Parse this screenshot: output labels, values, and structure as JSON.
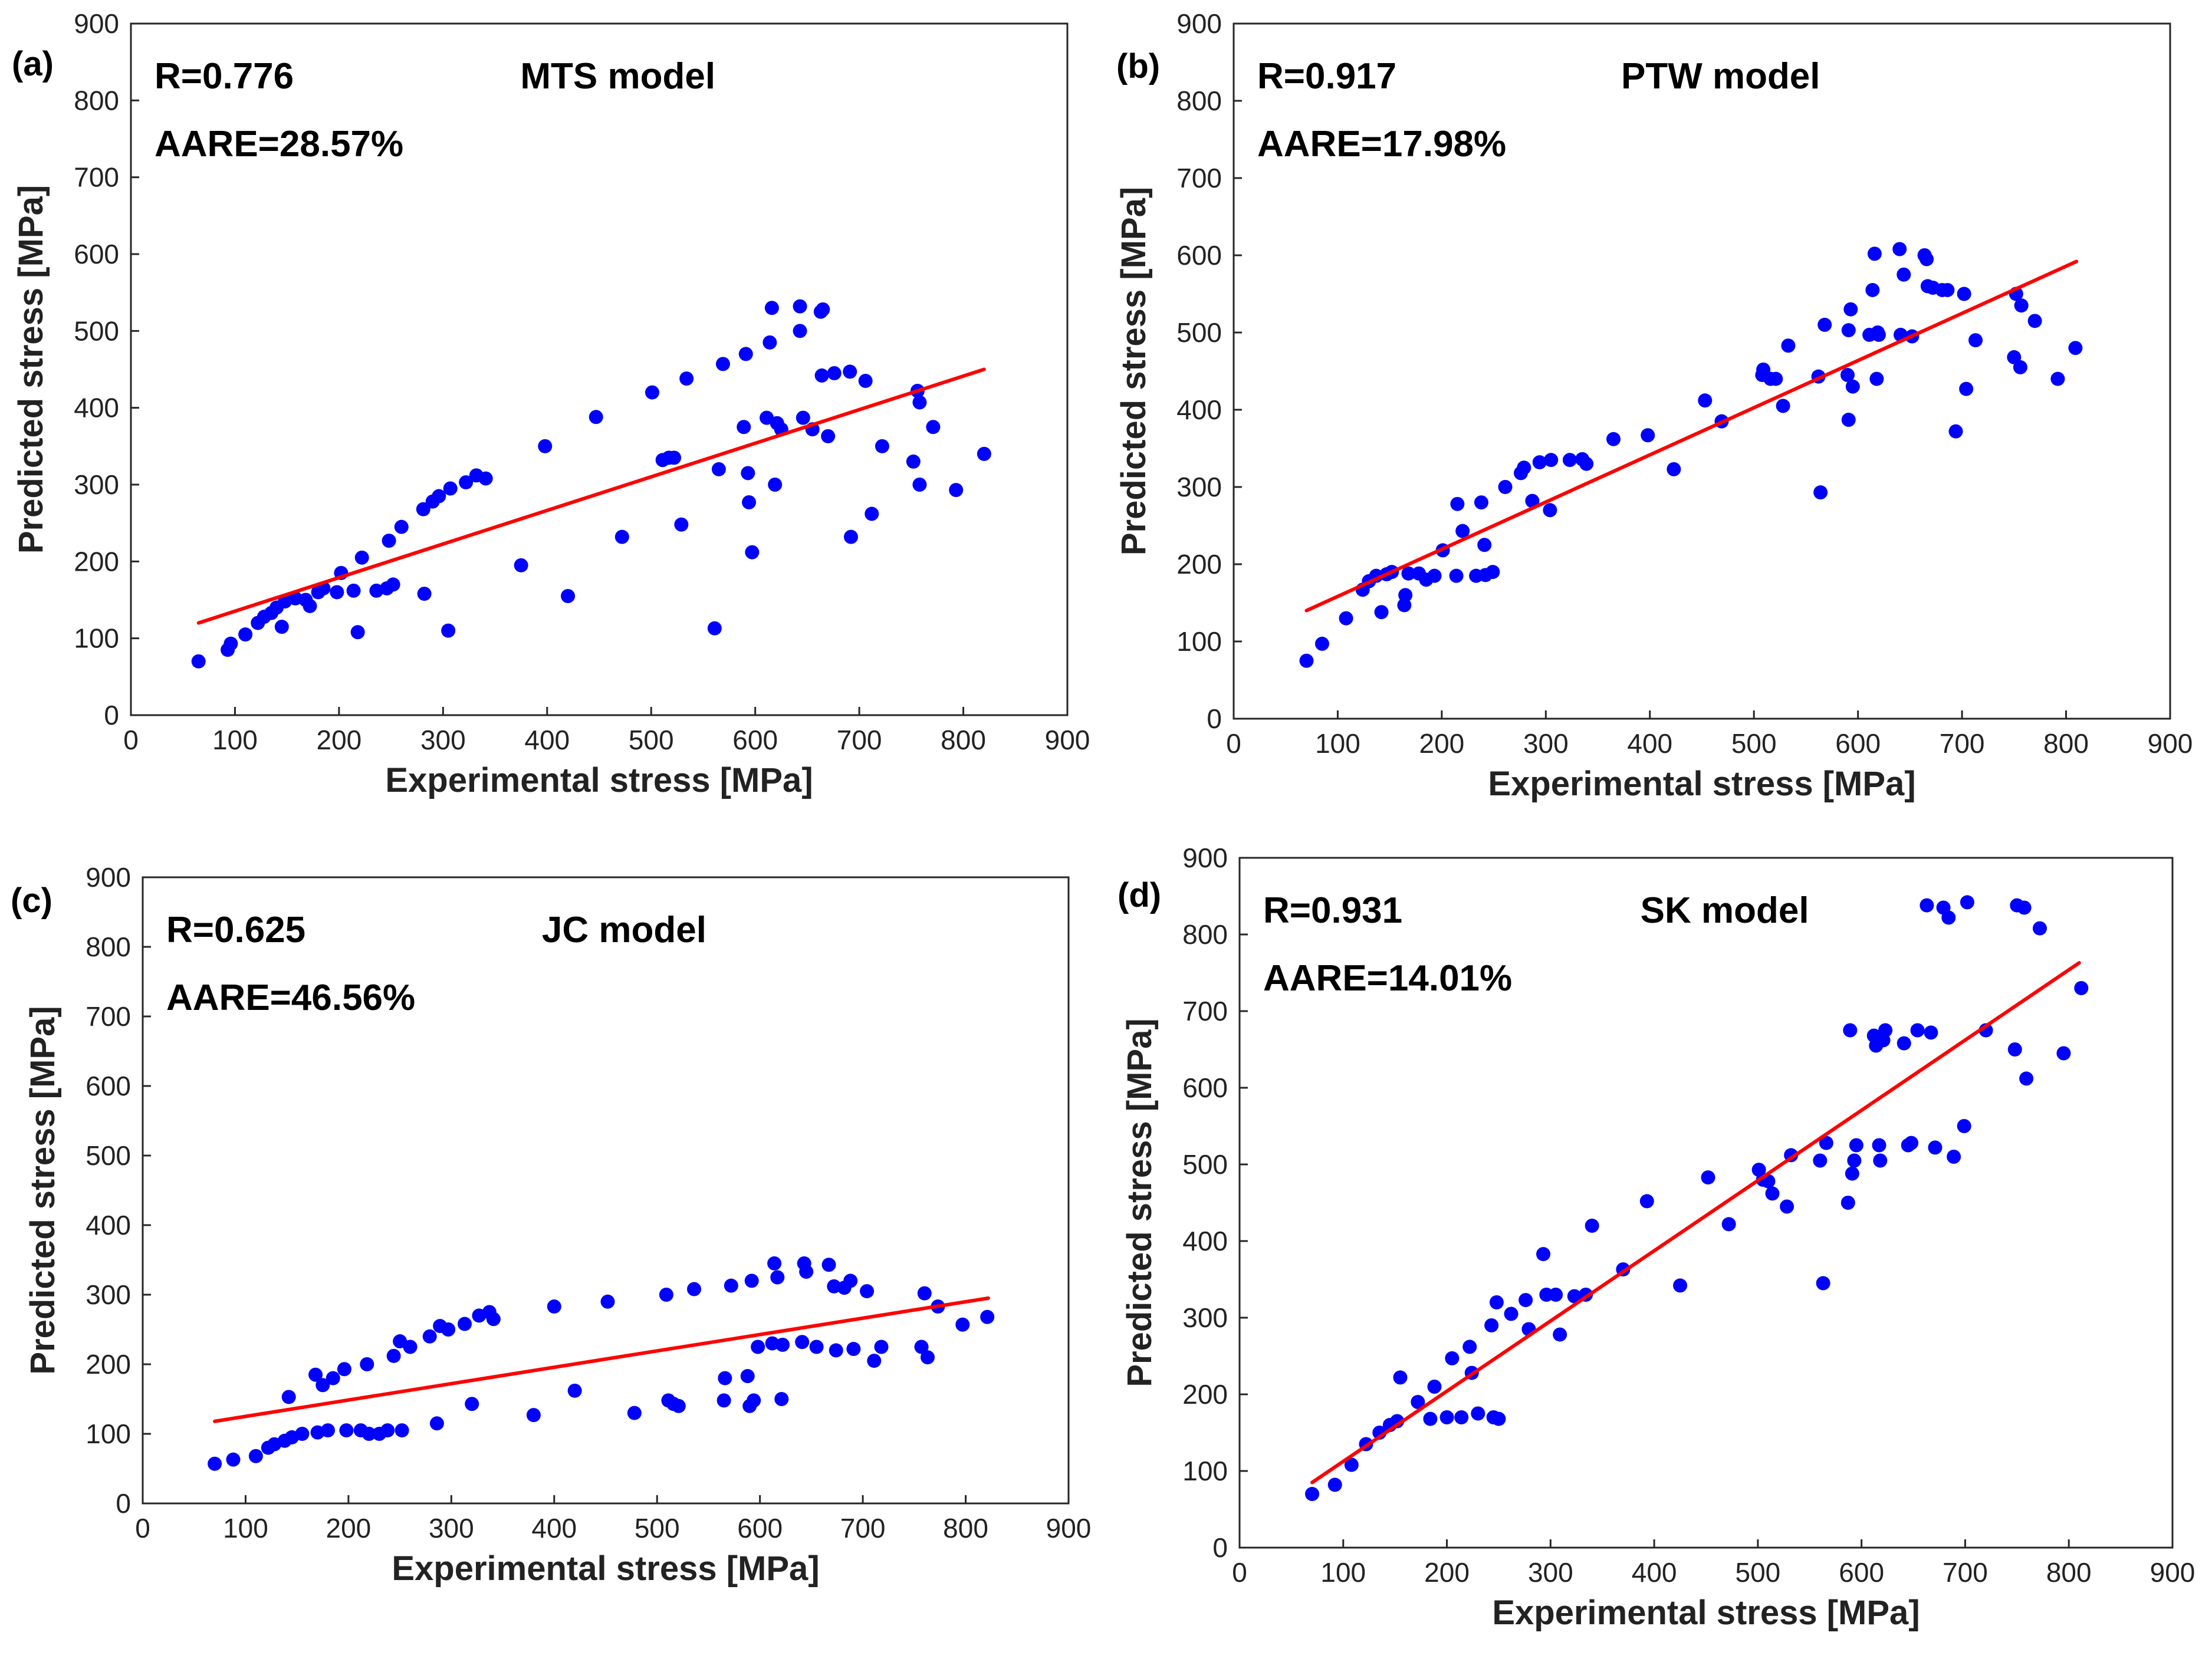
{
  "figure": {
    "colors": {
      "points": "#0000ff",
      "fit_line": "#ff0000",
      "frame": "#262626",
      "grid": "#d9d9d9"
    }
  },
  "chart_data": [
    {
      "type": "scatter",
      "panel_label": "(a)",
      "title": "MTS model",
      "stats": {
        "r": "R=0.776",
        "aare": "AARE=28.57%"
      },
      "xlabel": "Experimental stress [MPa]",
      "ylabel": "Predicted stress [MPa]",
      "xlim": [
        0,
        900
      ],
      "ylim": [
        0,
        900
      ],
      "xticks": [
        "0",
        "100",
        "200",
        "300",
        "400",
        "500",
        "600",
        "700",
        "800",
        "900"
      ],
      "yticks": [
        "0",
        "100",
        "200",
        "300",
        "400",
        "500",
        "600",
        "700",
        "800",
        "900"
      ],
      "grid": true,
      "fit_line": [
        [
          65,
          120
        ],
        [
          820,
          450
        ]
      ],
      "points": [
        [
          65,
          70
        ],
        [
          93,
          85
        ],
        [
          96,
          93
        ],
        [
          110,
          105
        ],
        [
          122,
          120
        ],
        [
          128,
          128
        ],
        [
          135,
          133
        ],
        [
          140,
          140
        ],
        [
          145,
          115
        ],
        [
          148,
          148
        ],
        [
          158,
          152
        ],
        [
          168,
          150
        ],
        [
          172,
          142
        ],
        [
          180,
          160
        ],
        [
          185,
          165
        ],
        [
          198,
          160
        ],
        [
          202,
          185
        ],
        [
          214,
          162
        ],
        [
          218,
          108
        ],
        [
          222,
          205
        ],
        [
          236,
          162
        ],
        [
          246,
          165
        ],
        [
          248,
          227
        ],
        [
          252,
          170
        ],
        [
          260,
          245
        ],
        [
          281,
          268
        ],
        [
          282,
          158
        ],
        [
          290,
          278
        ],
        [
          296,
          285
        ],
        [
          305,
          110
        ],
        [
          307,
          295
        ],
        [
          322,
          303
        ],
        [
          332,
          312
        ],
        [
          341,
          308
        ],
        [
          375,
          195
        ],
        [
          398,
          350
        ],
        [
          420,
          155
        ],
        [
          447,
          388
        ],
        [
          472,
          232
        ],
        [
          501,
          420
        ],
        [
          511,
          332
        ],
        [
          517,
          335
        ],
        [
          522,
          335
        ],
        [
          529,
          248
        ],
        [
          534,
          438
        ],
        [
          561,
          113
        ],
        [
          565,
          320
        ],
        [
          569,
          457
        ],
        [
          589,
          375
        ],
        [
          591,
          470
        ],
        [
          593,
          315
        ],
        [
          594,
          277
        ],
        [
          597,
          212
        ],
        [
          611,
          387
        ],
        [
          614,
          485
        ],
        [
          616,
          530
        ],
        [
          619,
          300
        ],
        [
          621,
          380
        ],
        [
          625,
          372
        ],
        [
          643,
          500
        ],
        [
          643,
          532
        ],
        [
          646,
          387
        ],
        [
          655,
          372
        ],
        [
          663,
          525
        ],
        [
          664,
          442
        ],
        [
          665,
          528
        ],
        [
          670,
          363
        ],
        [
          676,
          445
        ],
        [
          691,
          447
        ],
        [
          692,
          232
        ],
        [
          706,
          435
        ],
        [
          712,
          262
        ],
        [
          722,
          350
        ],
        [
          752,
          330
        ],
        [
          756,
          422
        ],
        [
          758,
          300
        ],
        [
          758,
          407
        ],
        [
          771,
          375
        ],
        [
          793,
          293
        ],
        [
          820,
          340
        ]
      ]
    },
    {
      "type": "scatter",
      "panel_label": "(b)",
      "title": "PTW model",
      "stats": {
        "r": "R=0.917",
        "aare": "AARE=17.98%"
      },
      "xlabel": "Experimental stress [MPa]",
      "ylabel": "Predicted stress [MPa]",
      "xlim": [
        0,
        900
      ],
      "ylim": [
        0,
        900
      ],
      "xticks": [
        "0",
        "100",
        "200",
        "300",
        "400",
        "500",
        "600",
        "700",
        "800",
        "900"
      ],
      "yticks": [
        "0",
        "100",
        "200",
        "300",
        "400",
        "500",
        "600",
        "700",
        "800",
        "900"
      ],
      "grid": true,
      "fit_line": [
        [
          70,
          140
        ],
        [
          810,
          592
        ]
      ],
      "points": [
        [
          70,
          75
        ],
        [
          85,
          97
        ],
        [
          108,
          130
        ],
        [
          124,
          167
        ],
        [
          130,
          178
        ],
        [
          137,
          185
        ],
        [
          142,
          138
        ],
        [
          147,
          187
        ],
        [
          152,
          190
        ],
        [
          164,
          147
        ],
        [
          165,
          160
        ],
        [
          168,
          188
        ],
        [
          178,
          188
        ],
        [
          185,
          180
        ],
        [
          193,
          185
        ],
        [
          201,
          218
        ],
        [
          214,
          185
        ],
        [
          215,
          278
        ],
        [
          220,
          243
        ],
        [
          233,
          185
        ],
        [
          238,
          280
        ],
        [
          241,
          225
        ],
        [
          242,
          186
        ],
        [
          249,
          190
        ],
        [
          261,
          300
        ],
        [
          276,
          318
        ],
        [
          279,
          325
        ],
        [
          287,
          282
        ],
        [
          294,
          332
        ],
        [
          304,
          270
        ],
        [
          305,
          335
        ],
        [
          323,
          335
        ],
        [
          335,
          336
        ],
        [
          339,
          330
        ],
        [
          365,
          362
        ],
        [
          398,
          367
        ],
        [
          423,
          323
        ],
        [
          453,
          412
        ],
        [
          469,
          385
        ],
        [
          508,
          445
        ],
        [
          509,
          452
        ],
        [
          516,
          440
        ],
        [
          521,
          440
        ],
        [
          528,
          405
        ],
        [
          533,
          483
        ],
        [
          562,
          443
        ],
        [
          564,
          293
        ],
        [
          568,
          510
        ],
        [
          590,
          445
        ],
        [
          591,
          503
        ],
        [
          591,
          387
        ],
        [
          593,
          530
        ],
        [
          595,
          430
        ],
        [
          611,
          497
        ],
        [
          614,
          555
        ],
        [
          616,
          602
        ],
        [
          618,
          440
        ],
        [
          619,
          500
        ],
        [
          620,
          497
        ],
        [
          640,
          608
        ],
        [
          641,
          497
        ],
        [
          644,
          575
        ],
        [
          652,
          495
        ],
        [
          664,
          600
        ],
        [
          666,
          595
        ],
        [
          667,
          560
        ],
        [
          672,
          558
        ],
        [
          681,
          555
        ],
        [
          686,
          555
        ],
        [
          694,
          372
        ],
        [
          702,
          550
        ],
        [
          704,
          427
        ],
        [
          713,
          490
        ],
        [
          750,
          468
        ],
        [
          752,
          550
        ],
        [
          756,
          455
        ],
        [
          757,
          535
        ],
        [
          770,
          515
        ],
        [
          792,
          440
        ],
        [
          809,
          480
        ]
      ]
    },
    {
      "type": "scatter",
      "panel_label": "(c)",
      "title": "JC model",
      "stats": {
        "r": "R=0.625",
        "aare": "AARE=46.56%"
      },
      "xlabel": "Experimental stress [MPa]",
      "ylabel": "Predicted stress [MPa]",
      "xlim": [
        0,
        900
      ],
      "ylim": [
        0,
        900
      ],
      "xticks": [
        "0",
        "100",
        "200",
        "300",
        "400",
        "500",
        "600",
        "700",
        "800",
        "900"
      ],
      "yticks": [
        "0",
        "100",
        "200",
        "300",
        "400",
        "500",
        "600",
        "700",
        "800",
        "900"
      ],
      "grid": true,
      "fit_line": [
        [
          70,
          118
        ],
        [
          822,
          295
        ]
      ],
      "points": [
        [
          70,
          57
        ],
        [
          88,
          63
        ],
        [
          110,
          68
        ],
        [
          122,
          80
        ],
        [
          128,
          85
        ],
        [
          138,
          90
        ],
        [
          142,
          153
        ],
        [
          145,
          95
        ],
        [
          155,
          100
        ],
        [
          168,
          185
        ],
        [
          170,
          102
        ],
        [
          175,
          170
        ],
        [
          180,
          105
        ],
        [
          185,
          180
        ],
        [
          196,
          193
        ],
        [
          198,
          105
        ],
        [
          212,
          105
        ],
        [
          218,
          200
        ],
        [
          220,
          100
        ],
        [
          230,
          100
        ],
        [
          238,
          105
        ],
        [
          244,
          212
        ],
        [
          250,
          233
        ],
        [
          252,
          105
        ],
        [
          260,
          225
        ],
        [
          279,
          240
        ],
        [
          286,
          115
        ],
        [
          289,
          255
        ],
        [
          297,
          250
        ],
        [
          313,
          258
        ],
        [
          320,
          143
        ],
        [
          327,
          270
        ],
        [
          337,
          275
        ],
        [
          341,
          265
        ],
        [
          380,
          127
        ],
        [
          400,
          283
        ],
        [
          420,
          162
        ],
        [
          452,
          290
        ],
        [
          478,
          130
        ],
        [
          509,
          300
        ],
        [
          511,
          148
        ],
        [
          516,
          143
        ],
        [
          521,
          140
        ],
        [
          536,
          308
        ],
        [
          565,
          148
        ],
        [
          566,
          180
        ],
        [
          572,
          313
        ],
        [
          588,
          183
        ],
        [
          590,
          140
        ],
        [
          592,
          320
        ],
        [
          594,
          148
        ],
        [
          598,
          225
        ],
        [
          612,
          230
        ],
        [
          614,
          345
        ],
        [
          617,
          325
        ],
        [
          621,
          150
        ],
        [
          622,
          228
        ],
        [
          641,
          232
        ],
        [
          643,
          345
        ],
        [
          645,
          333
        ],
        [
          655,
          225
        ],
        [
          667,
          343
        ],
        [
          672,
          312
        ],
        [
          674,
          220
        ],
        [
          682,
          310
        ],
        [
          688,
          320
        ],
        [
          691,
          222
        ],
        [
          704,
          305
        ],
        [
          711,
          205
        ],
        [
          718,
          225
        ],
        [
          757,
          225
        ],
        [
          760,
          302
        ],
        [
          763,
          210
        ],
        [
          773,
          283
        ],
        [
          797,
          257
        ],
        [
          821,
          268
        ]
      ]
    },
    {
      "type": "scatter",
      "panel_label": "(d)",
      "title": "SK model",
      "stats": {
        "r": "R=0.931",
        "aare": "AARE=14.01%"
      },
      "xlabel": "Experimental stress [MPa]",
      "ylabel": "Predicted stress [MPa]",
      "xlim": [
        0,
        900
      ],
      "ylim": [
        0,
        900
      ],
      "xticks": [
        "0",
        "100",
        "200",
        "300",
        "400",
        "500",
        "600",
        "700",
        "800",
        "900"
      ],
      "yticks": [
        "0",
        "100",
        "200",
        "300",
        "400",
        "500",
        "600",
        "700",
        "800",
        "900"
      ],
      "grid": true,
      "fit_line": [
        [
          70,
          85
        ],
        [
          810,
          763
        ]
      ],
      "points": [
        [
          70,
          70
        ],
        [
          92,
          82
        ],
        [
          108,
          108
        ],
        [
          122,
          135
        ],
        [
          135,
          150
        ],
        [
          145,
          160
        ],
        [
          152,
          165
        ],
        [
          155,
          222
        ],
        [
          172,
          190
        ],
        [
          184,
          168
        ],
        [
          188,
          210
        ],
        [
          200,
          170
        ],
        [
          205,
          247
        ],
        [
          214,
          170
        ],
        [
          222,
          262
        ],
        [
          224,
          228
        ],
        [
          230,
          175
        ],
        [
          243,
          290
        ],
        [
          245,
          170
        ],
        [
          248,
          320
        ],
        [
          250,
          168
        ],
        [
          262,
          305
        ],
        [
          276,
          323
        ],
        [
          279,
          285
        ],
        [
          293,
          383
        ],
        [
          296,
          330
        ],
        [
          305,
          330
        ],
        [
          309,
          278
        ],
        [
          323,
          328
        ],
        [
          334,
          330
        ],
        [
          340,
          420
        ],
        [
          370,
          363
        ],
        [
          393,
          452
        ],
        [
          425,
          342
        ],
        [
          452,
          483
        ],
        [
          472,
          422
        ],
        [
          501,
          493
        ],
        [
          505,
          480
        ],
        [
          510,
          478
        ],
        [
          514,
          462
        ],
        [
          528,
          445
        ],
        [
          532,
          512
        ],
        [
          560,
          505
        ],
        [
          563,
          345
        ],
        [
          566,
          528
        ],
        [
          587,
          450
        ],
        [
          589,
          675
        ],
        [
          591,
          488
        ],
        [
          593,
          505
        ],
        [
          595,
          525
        ],
        [
          612,
          668
        ],
        [
          614,
          655
        ],
        [
          617,
          525
        ],
        [
          618,
          505
        ],
        [
          621,
          662
        ],
        [
          623,
          675
        ],
        [
          641,
          658
        ],
        [
          645,
          525
        ],
        [
          648,
          528
        ],
        [
          654,
          675
        ],
        [
          663,
          838
        ],
        [
          667,
          672
        ],
        [
          671,
          522
        ],
        [
          679,
          835
        ],
        [
          684,
          822
        ],
        [
          689,
          510
        ],
        [
          699,
          550
        ],
        [
          702,
          842
        ],
        [
          720,
          675
        ],
        [
          748,
          650
        ],
        [
          750,
          838
        ],
        [
          757,
          835
        ],
        [
          759,
          612
        ],
        [
          772,
          808
        ],
        [
          795,
          645
        ],
        [
          812,
          730
        ]
      ]
    }
  ]
}
